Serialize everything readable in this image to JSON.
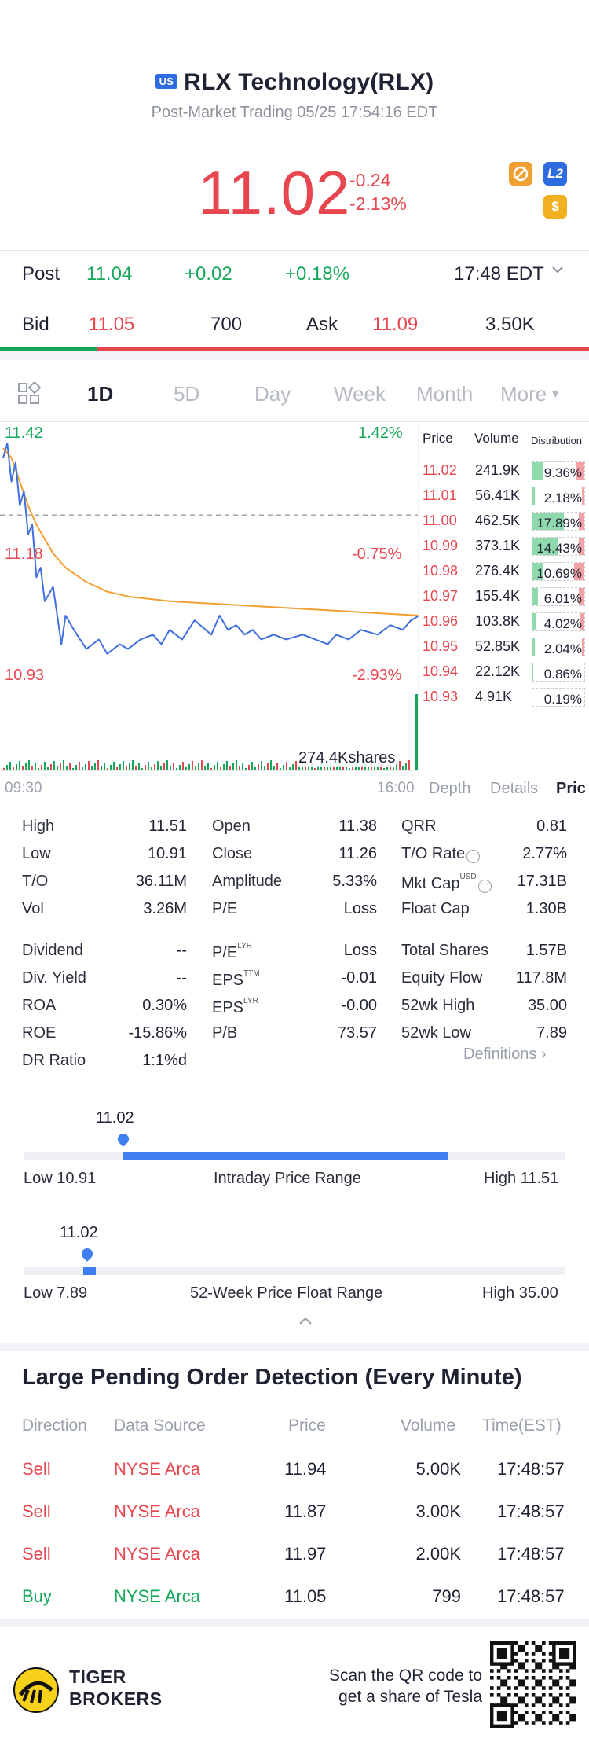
{
  "header": {
    "market_badge": "US",
    "title": "RLX Technology(RLX)",
    "subtitle": "Post-Market Trading 05/25 17:54:16 EDT",
    "price": "11.02",
    "change": "-0.24",
    "change_pct": "-2.13%",
    "icons": [
      "no-short-icon",
      "l2-icon",
      "dollar-icon"
    ],
    "l2_label": "L2",
    "dollar_label": "$"
  },
  "post": {
    "label": "Post",
    "price": "11.04",
    "change": "+0.02",
    "change_pct": "+0.18%",
    "time": "17:48 EDT"
  },
  "quote": {
    "bid_label": "Bid",
    "bid_price": "11.05",
    "bid_size": "700",
    "ask_label": "Ask",
    "ask_price": "11.09",
    "ask_size": "3.50K",
    "bid_share": 0.165
  },
  "tabs": {
    "items": [
      "1D",
      "5D",
      "Day",
      "Week",
      "Month",
      "More"
    ],
    "active": "1D"
  },
  "chart_data": {
    "type": "line",
    "y_left_labels": [
      "11.42",
      "11.18",
      "10.93"
    ],
    "y_right_labels": [
      "1.42%",
      "-0.75%",
      "-2.93%"
    ],
    "x_labels": [
      "09:30",
      "16:00"
    ],
    "ylim": [
      10.93,
      11.42
    ],
    "volume_label": "274.4Kshares",
    "series": [
      {
        "name": "price",
        "color": "#3f6fe0",
        "x": [
          0,
          0.01,
          0.02,
          0.03,
          0.04,
          0.05,
          0.06,
          0.07,
          0.08,
          0.09,
          0.1,
          0.12,
          0.14,
          0.15,
          0.17,
          0.2,
          0.23,
          0.25,
          0.28,
          0.3,
          0.33,
          0.36,
          0.38,
          0.4,
          0.43,
          0.46,
          0.5,
          0.52,
          0.54,
          0.56,
          0.58,
          0.6,
          0.62,
          0.65,
          0.68,
          0.72,
          0.75,
          0.78,
          0.8,
          0.83,
          0.86,
          0.9,
          0.93,
          0.96,
          0.98,
          1.0
        ],
        "values": [
          11.38,
          11.41,
          11.33,
          11.37,
          11.28,
          11.31,
          11.22,
          11.24,
          11.13,
          11.15,
          11.08,
          11.11,
          10.99,
          11.05,
          11.02,
          10.98,
          11.0,
          10.97,
          10.99,
          10.98,
          11.0,
          11.01,
          10.99,
          11.02,
          11.0,
          11.04,
          11.01,
          11.05,
          11.02,
          11.03,
          11.01,
          11.02,
          11.0,
          11.01,
          11.0,
          11.01,
          11.0,
          10.99,
          11.01,
          11.0,
          11.02,
          11.01,
          11.03,
          11.02,
          11.04,
          11.05
        ]
      },
      {
        "name": "average",
        "color": "#f0a030",
        "x": [
          0,
          0.02,
          0.04,
          0.06,
          0.08,
          0.1,
          0.12,
          0.15,
          0.2,
          0.25,
          0.3,
          0.35,
          0.4,
          0.5,
          0.6,
          0.7,
          0.8,
          0.9,
          1.0
        ],
        "values": [
          11.4,
          11.38,
          11.33,
          11.28,
          11.24,
          11.21,
          11.18,
          11.15,
          11.12,
          11.1,
          11.09,
          11.085,
          11.08,
          11.075,
          11.07,
          11.065,
          11.06,
          11.055,
          11.05
        ]
      }
    ],
    "prev_close_line": 11.26
  },
  "orderbook": {
    "headers": [
      "Price",
      "Volume",
      "Distribution"
    ],
    "rows": [
      {
        "price": "11.02",
        "volume": "241.9K",
        "dist": "9.36%",
        "buy": 0.2,
        "sell": 0.15
      },
      {
        "price": "11.01",
        "volume": "56.41K",
        "dist": "2.18%",
        "buy": 0.05,
        "sell": 0.05
      },
      {
        "price": "11.00",
        "volume": "462.5K",
        "dist": "17.89%",
        "buy": 0.6,
        "sell": 0.1
      },
      {
        "price": "10.99",
        "volume": "373.1K",
        "dist": "14.43%",
        "buy": 0.5,
        "sell": 0.1
      },
      {
        "price": "10.98",
        "volume": "276.4K",
        "dist": "10.69%",
        "buy": 0.2,
        "sell": 0.2
      },
      {
        "price": "10.97",
        "volume": "155.4K",
        "dist": "6.01%",
        "buy": 0.1,
        "sell": 0.1
      },
      {
        "price": "10.96",
        "volume": "103.8K",
        "dist": "4.02%",
        "buy": 0.06,
        "sell": 0.08
      },
      {
        "price": "10.95",
        "volume": "52.85K",
        "dist": "2.04%",
        "buy": 0.04,
        "sell": 0.04
      },
      {
        "price": "10.94",
        "volume": "22.12K",
        "dist": "0.86%",
        "buy": 0.02,
        "sell": 0.02
      },
      {
        "price": "10.93",
        "volume": "4.91K",
        "dist": "0.19%",
        "buy": 0.0,
        "sell": 0.01
      }
    ],
    "sub_tabs": [
      "Depth",
      "Details",
      "Pric"
    ]
  },
  "stats": {
    "col1": [
      {
        "k": "High",
        "v": "11.51"
      },
      {
        "k": "Low",
        "v": "10.91"
      },
      {
        "k": "T/O",
        "v": "36.11M"
      },
      {
        "k": "Vol",
        "v": "3.26M"
      }
    ],
    "col2": [
      {
        "k": "Open",
        "v": "11.38"
      },
      {
        "k": "Close",
        "v": "11.26"
      },
      {
        "k": "Amplitude",
        "v": "5.33%"
      },
      {
        "k": "P/E",
        "v": "Loss"
      }
    ],
    "col3": [
      {
        "k": "QRR",
        "v": "0.81"
      },
      {
        "k": "T/O Rate",
        "v": "2.77%"
      },
      {
        "k": "Mkt Cap",
        "v": "17.31B"
      },
      {
        "k": "Float Cap",
        "v": "1.30B"
      }
    ],
    "col1b": [
      {
        "k": "Dividend",
        "v": "--"
      },
      {
        "k": "Div. Yield",
        "v": "--"
      },
      {
        "k": "ROA",
        "v": "0.30%"
      },
      {
        "k": "ROE",
        "v": "-15.86%"
      },
      {
        "k": "DR Ratio",
        "v": "1:1%d"
      }
    ],
    "col2b": [
      {
        "k": "P/E",
        "sup": "LYR",
        "v": "Loss"
      },
      {
        "k": "EPS",
        "sup": "TTM",
        "v": "-0.01"
      },
      {
        "k": "EPS",
        "sup": "LYR",
        "v": "-0.00"
      },
      {
        "k": "P/B",
        "sup": "",
        "v": "73.57"
      }
    ],
    "col3b": [
      {
        "k": "Total Shares",
        "v": "1.57B"
      },
      {
        "k": "Equity Flow",
        "v": "117.8M"
      },
      {
        "k": "52wk High",
        "v": "35.00"
      },
      {
        "k": "52wk Low",
        "v": "7.89"
      }
    ],
    "mkt_cap_sup": "USD",
    "definitions": "Definitions"
  },
  "ranges": {
    "intraday": {
      "current": "11.02",
      "low_label": "Low 10.91",
      "high_label": "High 11.51",
      "title": "Intraday Price Range",
      "low": 10.91,
      "high": 11.51,
      "value": 11.02
    },
    "week52": {
      "current": "11.02",
      "low_label": "Low 7.89",
      "high_label": "High 35.00",
      "title": "52-Week Price Float Range",
      "low": 7.89,
      "high": 35.0,
      "value": 11.02
    }
  },
  "pending": {
    "title": "Large Pending Order Detection (Every Minute)",
    "headers": [
      "Direction",
      "Data Source",
      "Price",
      "Volume",
      "Time(EST)"
    ],
    "rows": [
      {
        "dir": "Sell",
        "src": "NYSE Arca",
        "price": "11.94",
        "vol": "5.00K",
        "time": "17:48:57"
      },
      {
        "dir": "Sell",
        "src": "NYSE Arca",
        "price": "11.87",
        "vol": "3.00K",
        "time": "17:48:57"
      },
      {
        "dir": "Sell",
        "src": "NYSE Arca",
        "price": "11.97",
        "vol": "2.00K",
        "time": "17:48:57"
      },
      {
        "dir": "Buy",
        "src": "NYSE Arca",
        "price": "11.05",
        "vol": "799",
        "time": "17:48:57"
      }
    ]
  },
  "footer": {
    "brand_line1": "TIGER",
    "brand_line2": "BROKERS",
    "cta_line1": "Scan the QR code to",
    "cta_line2": "get a share of Tesla"
  }
}
